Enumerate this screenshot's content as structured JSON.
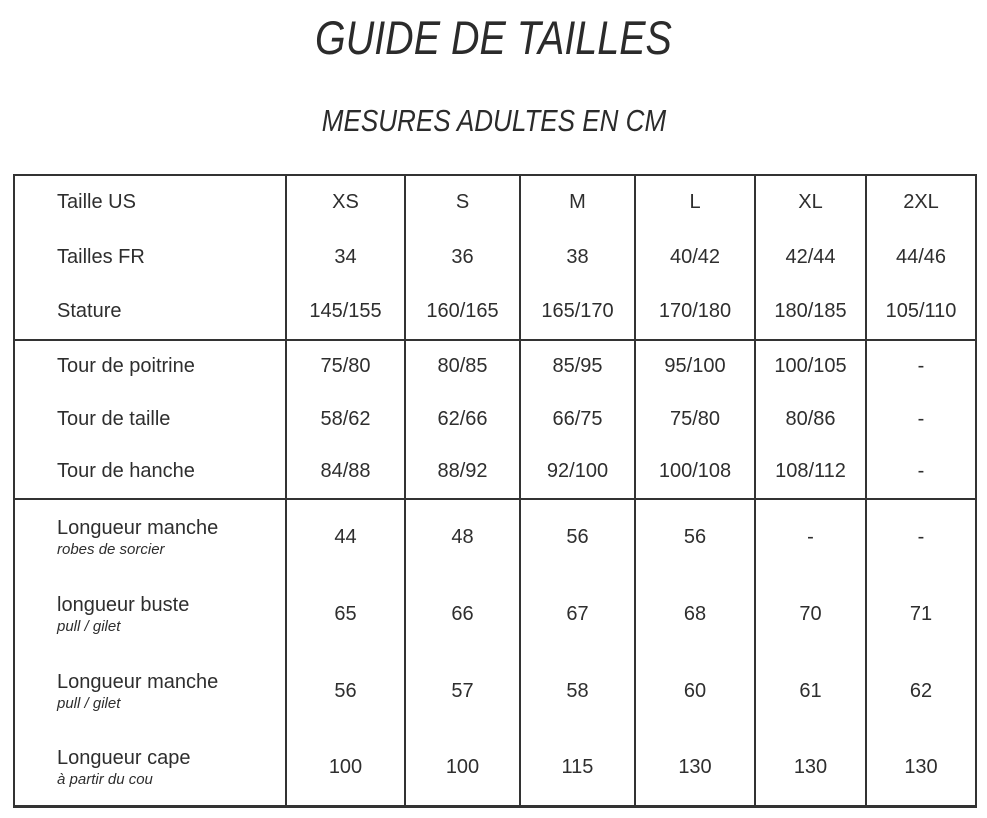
{
  "page": {
    "title": "GUIDE DE TAILLES",
    "subtitle": "MESURES ADULTES EN CM"
  },
  "colors": {
    "text": "#2e2e2e",
    "border": "#333333",
    "background": "#ffffff"
  },
  "table": {
    "blocks": [
      {
        "name": "sizes",
        "rows": [
          {
            "label": "Taille US",
            "values": [
              "XS",
              "S",
              "M",
              "L",
              "XL",
              "2XL"
            ]
          },
          {
            "label": "Tailles FR",
            "values": [
              "34",
              "36",
              "38",
              "40/42",
              "42/44",
              "44/46"
            ]
          },
          {
            "label": "Stature",
            "values": [
              "145/155",
              "160/165",
              "165/170",
              "170/180",
              "180/185",
              "105/110"
            ]
          }
        ]
      },
      {
        "name": "body-measurements",
        "rows": [
          {
            "label": "Tour de poitrine",
            "values": [
              "75/80",
              "80/85",
              "85/95",
              "95/100",
              "100/105",
              "-"
            ]
          },
          {
            "label": "Tour de taille",
            "values": [
              "58/62",
              "62/66",
              "66/75",
              "75/80",
              "80/86",
              "-"
            ]
          },
          {
            "label": "Tour de hanche",
            "values": [
              "84/88",
              "88/92",
              "92/100",
              "100/108",
              "108/112",
              "-"
            ]
          }
        ]
      },
      {
        "name": "garment-measurements",
        "rows": [
          {
            "label": "Longueur manche",
            "sublabel": "robes de sorcier",
            "values": [
              "44",
              "48",
              "56",
              "56",
              "-",
              "-"
            ]
          },
          {
            "label": "longueur buste",
            "sublabel": "pull / gilet",
            "values": [
              "65",
              "66",
              "67",
              "68",
              "70",
              "71"
            ]
          },
          {
            "label": "Longueur manche",
            "sublabel": "pull / gilet",
            "values": [
              "56",
              "57",
              "58",
              "60",
              "61",
              "62"
            ]
          },
          {
            "label": "Longueur cape",
            "sublabel": "à partir du cou",
            "values": [
              "100",
              "100",
              "115",
              "130",
              "130",
              "130"
            ]
          }
        ]
      }
    ]
  }
}
